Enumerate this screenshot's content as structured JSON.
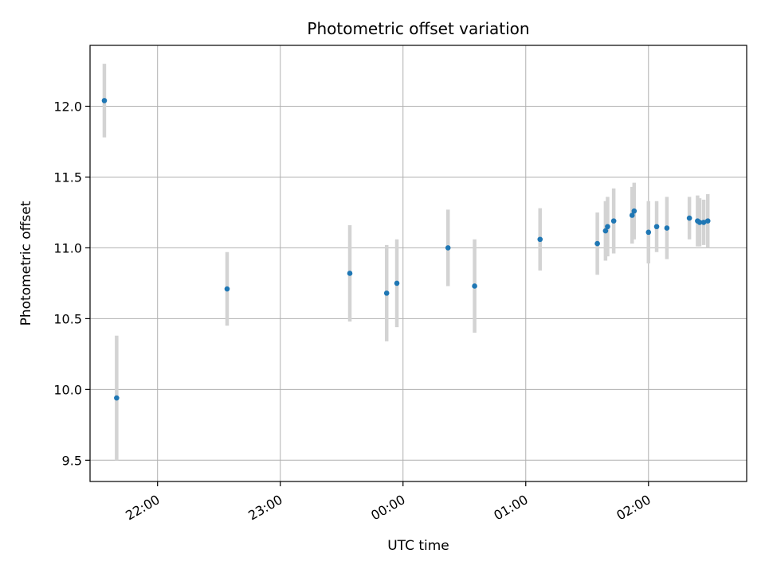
{
  "chart_data": {
    "type": "scatter",
    "title": "Photometric offset variation",
    "xlabel": "UTC time",
    "ylabel": "Photometric offset",
    "ylim": [
      9.35,
      12.43
    ],
    "xlim": [
      "21:27",
      "02:48"
    ],
    "x_ticks": [
      "22:00",
      "23:00",
      "00:00",
      "01:00",
      "02:00"
    ],
    "y_ticks": [
      "9.5",
      "10.0",
      "10.5",
      "11.0",
      "11.5",
      "12.0"
    ],
    "grid": true,
    "colors": {
      "point": "#1f77b4",
      "errorbar": "#d3d3d3",
      "grid": "#b0b0b0"
    },
    "points": [
      {
        "x": "21:34",
        "y": 12.04,
        "err": 0.26
      },
      {
        "x": "21:40",
        "y": 9.94,
        "err": 0.44
      },
      {
        "x": "22:34",
        "y": 10.71,
        "err": 0.26
      },
      {
        "x": "23:34",
        "y": 10.82,
        "err": 0.34
      },
      {
        "x": "23:52",
        "y": 10.68,
        "err": 0.34
      },
      {
        "x": "23:57",
        "y": 10.75,
        "err": 0.31
      },
      {
        "x": "00:22",
        "y": 11.0,
        "err": 0.27
      },
      {
        "x": "00:35",
        "y": 10.73,
        "err": 0.33
      },
      {
        "x": "01:07",
        "y": 11.06,
        "err": 0.22
      },
      {
        "x": "01:35",
        "y": 11.03,
        "err": 0.22
      },
      {
        "x": "01:39",
        "y": 11.12,
        "err": 0.21
      },
      {
        "x": "01:40",
        "y": 11.15,
        "err": 0.21
      },
      {
        "x": "01:43",
        "y": 11.19,
        "err": 0.23
      },
      {
        "x": "01:52",
        "y": 11.23,
        "err": 0.2
      },
      {
        "x": "01:53",
        "y": 11.26,
        "err": 0.2
      },
      {
        "x": "02:00",
        "y": 11.11,
        "err": 0.22
      },
      {
        "x": "02:04",
        "y": 11.15,
        "err": 0.18
      },
      {
        "x": "02:09",
        "y": 11.14,
        "err": 0.22
      },
      {
        "x": "02:20",
        "y": 11.21,
        "err": 0.15
      },
      {
        "x": "02:24",
        "y": 11.19,
        "err": 0.18
      },
      {
        "x": "02:25",
        "y": 11.18,
        "err": 0.17
      },
      {
        "x": "02:27",
        "y": 11.18,
        "err": 0.16
      },
      {
        "x": "02:29",
        "y": 11.19,
        "err": 0.19
      }
    ]
  }
}
